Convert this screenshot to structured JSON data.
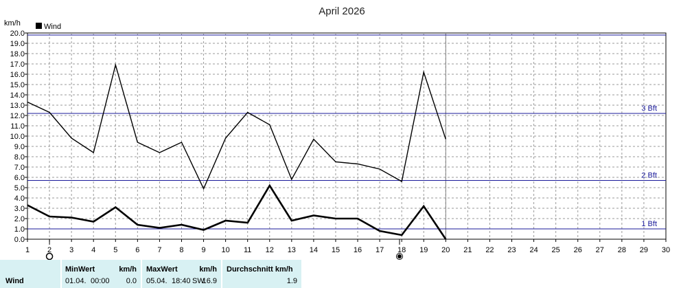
{
  "chart_data": {
    "type": "line",
    "title": "April 2026",
    "ylabel": "km/h",
    "legend": "Wind",
    "legend_position": "top-left",
    "xlim": [
      1,
      30
    ],
    "ylim": [
      0,
      20
    ],
    "y_tick_step": 1,
    "x_ticks": [
      "1",
      "2",
      "3",
      "4",
      "5",
      "6",
      "7",
      "8",
      "9",
      "10",
      "11",
      "12",
      "13",
      "14",
      "15",
      "16",
      "17",
      "18",
      "19",
      "20",
      "21",
      "22",
      "23",
      "24",
      "25",
      "26",
      "27",
      "28",
      "29",
      "30"
    ],
    "grid": true,
    "current_day": 20,
    "series": [
      {
        "name": "Wind",
        "role": "max",
        "x": [
          1,
          2,
          3,
          4,
          5,
          6,
          7,
          8,
          9,
          10,
          11,
          12,
          13,
          14,
          15,
          16,
          17,
          18,
          19,
          20
        ],
        "values": [
          13.3,
          12.3,
          9.8,
          8.4,
          16.9,
          9.4,
          8.4,
          9.4,
          4.9,
          9.8,
          12.3,
          11.1,
          5.8,
          9.7,
          7.5,
          7.3,
          6.8,
          5.6,
          16.2,
          9.7
        ]
      },
      {
        "name": "Wind",
        "role": "average",
        "x": [
          1,
          2,
          3,
          4,
          5,
          6,
          7,
          8,
          9,
          10,
          11,
          12,
          13,
          14,
          15,
          16,
          17,
          18,
          19,
          20
        ],
        "values": [
          3.3,
          2.2,
          2.1,
          1.7,
          3.1,
          1.4,
          1.1,
          1.4,
          0.9,
          1.8,
          1.6,
          5.2,
          1.8,
          2.3,
          2.0,
          2.0,
          0.8,
          0.4,
          3.2,
          0.0
        ]
      }
    ],
    "reference_lines": [
      {
        "label": "1 Bft",
        "value": 1.0
      },
      {
        "label": "2 Bft",
        "value": 5.7
      },
      {
        "label": "3 Bft",
        "value": 12.2
      },
      {
        "label": "",
        "value": 19.8
      }
    ],
    "moon_phases": [
      {
        "day": 2,
        "phase": "full-moon"
      },
      {
        "day": 17.9,
        "phase": "new-moon"
      }
    ]
  },
  "stats": {
    "row_label": "Wind",
    "min_header": "MinWert",
    "unit_header": "km/h",
    "min_date": "01.04.",
    "min_time": "00:00",
    "min_value": "0.0",
    "max_header": "MaxWert",
    "max_date": "05.04.",
    "max_time": "18:40",
    "max_dir": "SW",
    "max_value": "16.9",
    "avg_header": "Durchschnitt km/h",
    "avg_value": "1.9"
  },
  "colors": {
    "line": "#000000",
    "reference": "#1a1a9a",
    "grid": "#9a9a9a",
    "stats_bg": "#d8f1f3"
  }
}
